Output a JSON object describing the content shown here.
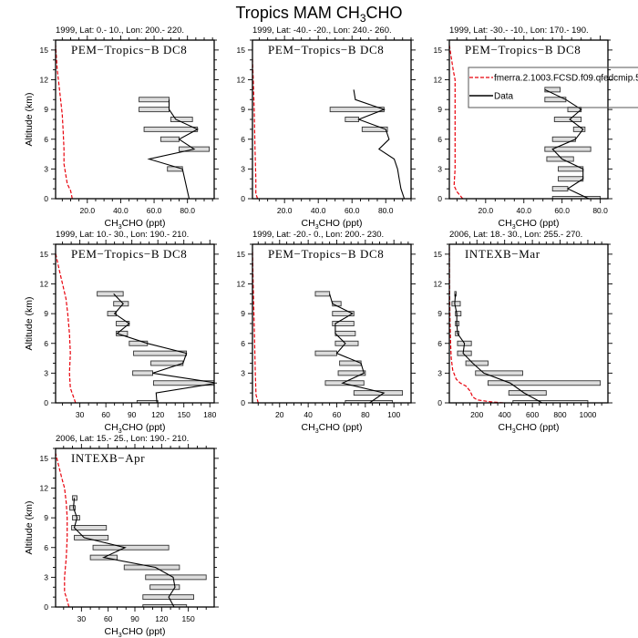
{
  "figure": {
    "title_parts": [
      "Tropics MAM CH",
      "3",
      "CHO"
    ]
  },
  "legend": {
    "entries": [
      {
        "label": "fmerra.2.1003.FCSD.f09.qfedcmip.5",
        "color": "#e8000b",
        "style": "dashed"
      },
      {
        "label": "Data",
        "color": "#000000",
        "style": "solid"
      }
    ]
  },
  "colors": {
    "model": "#e8000b",
    "data": "#000000",
    "bar_fill": "#dcdcdc",
    "bar_stroke": "#333333"
  },
  "chart_data": [
    {
      "type": "line",
      "subtitle": "1999, Lat: 0.- 10., Lon: 200.- 220.",
      "campaign": "PEM−Tropics−B DC8",
      "xlabel_parts": [
        "CH",
        "3",
        "CHO (ppt)"
      ],
      "ylabel": "Altitude (km)",
      "xlim": [
        1,
        96
      ],
      "ylim": [
        0,
        16
      ],
      "xticks": [
        20,
        40,
        60,
        80
      ],
      "xtick_labels": [
        "20.0",
        "40.0",
        "60.0",
        "80.0"
      ],
      "xminor": 5,
      "yticks": [
        0,
        3,
        6,
        9,
        12,
        15
      ],
      "ytick_labels": [
        "0",
        "3",
        "6",
        "9",
        "12",
        "15"
      ],
      "yminor": 1,
      "model": [
        [
          11,
          0
        ],
        [
          10,
          0.8
        ],
        [
          8,
          1.5
        ],
        [
          7,
          2.5
        ],
        [
          6,
          3.5
        ],
        [
          6,
          5
        ],
        [
          5.5,
          7
        ],
        [
          5,
          8.5
        ],
        [
          4,
          10
        ],
        [
          3,
          11.5
        ],
        [
          2,
          13
        ],
        [
          1,
          15.5
        ]
      ],
      "data": [
        [
          81,
          0
        ],
        [
          77,
          3
        ],
        [
          57,
          4
        ],
        [
          84,
          5
        ],
        [
          75,
          6
        ],
        [
          86,
          7
        ],
        [
          73,
          8
        ],
        [
          69,
          9
        ],
        [
          69,
          10
        ]
      ],
      "bars": [
        [
          10,
          51,
          69
        ],
        [
          9,
          51,
          69
        ],
        [
          8,
          70,
          83
        ],
        [
          7,
          54,
          86
        ],
        [
          6,
          64,
          75
        ],
        [
          5,
          75,
          93
        ],
        [
          3,
          68,
          77
        ]
      ],
      "legend": false
    },
    {
      "type": "line",
      "subtitle": "1999, Lat: -40.- -20., Lon: 240.- 260.",
      "campaign": "PEM−Tropics−B DC8",
      "xlabel_parts": [
        "CH",
        "3",
        "CHO (ppt)"
      ],
      "ylabel": "",
      "xlim": [
        1,
        95
      ],
      "ylim": [
        0,
        16
      ],
      "xticks": [
        20,
        40,
        60,
        80
      ],
      "xtick_labels": [
        "20.0",
        "40.0",
        "60.0",
        "80.0"
      ],
      "xminor": 5,
      "yticks": [
        0,
        3,
        6,
        9,
        12,
        15
      ],
      "ytick_labels": [
        "0",
        "3",
        "6",
        "9",
        "12",
        "15"
      ],
      "yminor": 1,
      "model": [
        [
          4,
          0
        ],
        [
          3,
          0.5
        ],
        [
          3,
          2
        ],
        [
          2.5,
          5
        ],
        [
          2,
          9
        ],
        [
          1.5,
          12
        ],
        [
          1,
          14
        ],
        [
          0.5,
          15.5
        ]
      ],
      "data": [
        [
          91,
          0
        ],
        [
          89,
          1
        ],
        [
          88,
          2
        ],
        [
          87,
          3
        ],
        [
          85,
          4
        ],
        [
          76,
          5
        ],
        [
          82,
          6
        ],
        [
          80,
          7
        ],
        [
          64,
          8
        ],
        [
          79,
          9
        ],
        [
          62,
          10
        ],
        [
          61,
          11
        ]
      ],
      "bars": [
        [
          9,
          47,
          79
        ],
        [
          8,
          56,
          64
        ],
        [
          7,
          66,
          81
        ]
      ],
      "legend": false
    },
    {
      "type": "line",
      "subtitle": "1999, Lat: -30.- -10., Lon: 170.- 190.",
      "campaign": "PEM−Tropics−B DC8",
      "xlabel_parts": [
        "CH",
        "3",
        "CHO (ppt)"
      ],
      "ylabel": "",
      "xlim": [
        1,
        84
      ],
      "ylim": [
        0,
        16
      ],
      "xticks": [
        20,
        40,
        60,
        80
      ],
      "xtick_labels": [
        "20.0",
        "40.0",
        "60.0",
        "80.0"
      ],
      "xminor": 5,
      "yticks": [
        0,
        3,
        6,
        9,
        12,
        15
      ],
      "ytick_labels": [
        "0",
        "3",
        "6",
        "9",
        "12",
        "15"
      ],
      "yminor": 1,
      "model": [
        [
          8,
          0
        ],
        [
          5,
          0.7
        ],
        [
          3.5,
          1.3
        ],
        [
          4,
          3
        ],
        [
          4,
          12
        ],
        [
          3,
          13
        ],
        [
          1,
          15.5
        ]
      ],
      "data": [
        [
          74,
          0
        ],
        [
          63,
          1
        ],
        [
          71,
          2
        ],
        [
          71,
          3
        ],
        [
          60,
          4
        ],
        [
          55,
          5
        ],
        [
          67,
          6
        ],
        [
          71,
          7
        ],
        [
          64,
          8
        ],
        [
          70,
          9
        ],
        [
          62,
          10
        ],
        [
          51,
          11
        ]
      ],
      "bars": [
        [
          11,
          51,
          59
        ],
        [
          10,
          51,
          62
        ],
        [
          9,
          63,
          70
        ],
        [
          8,
          56,
          70
        ],
        [
          7,
          66,
          72
        ],
        [
          6,
          55,
          67
        ],
        [
          5,
          51,
          75
        ],
        [
          4,
          52,
          66
        ],
        [
          3,
          58,
          71
        ],
        [
          2,
          58,
          71
        ],
        [
          1,
          55,
          63
        ],
        [
          0,
          55,
          80
        ]
      ],
      "legend": true
    },
    {
      "type": "line",
      "subtitle": "1999, Lat: 10.- 30., Lon: 190.- 210.",
      "campaign": "PEM−Tropics−B DC8",
      "xlabel_parts": [
        "CH",
        "3",
        "CHO (ppt)"
      ],
      "ylabel": "Altitude (km)",
      "xlim": [
        2,
        185
      ],
      "ylim": [
        0,
        16
      ],
      "xticks": [
        30,
        60,
        90,
        120,
        150,
        180
      ],
      "xtick_labels": [
        "30",
        "60",
        "90",
        "120",
        "150",
        "180"
      ],
      "xminor": 10,
      "yticks": [
        0,
        3,
        6,
        9,
        12,
        15
      ],
      "ytick_labels": [
        "0",
        "3",
        "6",
        "9",
        "12",
        "15"
      ],
      "yminor": 1,
      "model": [
        [
          25,
          0
        ],
        [
          19,
          1.5
        ],
        [
          18,
          3
        ],
        [
          19,
          5
        ],
        [
          18,
          7
        ],
        [
          16,
          9
        ],
        [
          14,
          10.5
        ],
        [
          10,
          12
        ],
        [
          6,
          13.5
        ],
        [
          1,
          15.5
        ]
      ],
      "data": [
        [
          119,
          0
        ],
        [
          118,
          1
        ],
        [
          188,
          2
        ],
        [
          114,
          3
        ],
        [
          149,
          4
        ],
        [
          153,
          5
        ],
        [
          108,
          6
        ],
        [
          73,
          7
        ],
        [
          87,
          8
        ],
        [
          70,
          9
        ],
        [
          80,
          10
        ],
        [
          69,
          11
        ]
      ],
      "bars": [
        [
          11,
          50,
          80
        ],
        [
          10,
          69,
          86
        ],
        [
          9,
          62,
          72
        ],
        [
          8,
          72,
          87
        ],
        [
          7,
          72,
          85
        ],
        [
          6,
          87,
          108
        ],
        [
          5,
          92,
          153
        ],
        [
          4,
          112,
          149
        ],
        [
          3,
          91,
          114
        ],
        [
          2,
          115,
          188
        ],
        [
          0,
          96,
          120
        ]
      ],
      "legend": false
    },
    {
      "type": "line",
      "subtitle": "1999, Lat: -20.- 0., Lon: 200.- 230.",
      "campaign": "PEM−Tropics−B DC8",
      "xlabel_parts": [
        "CH",
        "3",
        "CHO (ppt)"
      ],
      "ylabel": "",
      "xlim": [
        1,
        112
      ],
      "ylim": [
        0,
        16
      ],
      "xticks": [
        20,
        40,
        60,
        80,
        100
      ],
      "xtick_labels": [
        "20",
        "40",
        "60",
        "80",
        "100"
      ],
      "xminor": 5,
      "yticks": [
        0,
        3,
        6,
        9,
        12,
        15
      ],
      "ytick_labels": [
        "0",
        "3",
        "6",
        "9",
        "12",
        "15"
      ],
      "yminor": 1,
      "model": [
        [
          5,
          0
        ],
        [
          3.5,
          0.8
        ],
        [
          3,
          3
        ],
        [
          2.5,
          6
        ],
        [
          2,
          9
        ],
        [
          1.5,
          12
        ],
        [
          1,
          15.5
        ]
      ],
      "data": [
        [
          83,
          0
        ],
        [
          93,
          1
        ],
        [
          64,
          2
        ],
        [
          79,
          3
        ],
        [
          77,
          4
        ],
        [
          60,
          5
        ],
        [
          66,
          6
        ],
        [
          59,
          7
        ],
        [
          59,
          8
        ],
        [
          71,
          9
        ],
        [
          57,
          10
        ],
        [
          55,
          11
        ]
      ],
      "bars": [
        [
          11,
          45,
          55
        ],
        [
          10,
          57,
          63
        ],
        [
          9,
          57,
          72
        ],
        [
          8,
          57,
          72
        ],
        [
          7,
          59,
          73
        ],
        [
          6,
          59,
          75
        ],
        [
          5,
          45,
          60
        ],
        [
          4,
          62,
          77
        ],
        [
          3,
          61,
          80
        ],
        [
          2,
          52,
          79
        ],
        [
          1,
          72,
          106
        ],
        [
          0,
          66,
          99
        ]
      ],
      "legend": false
    },
    {
      "type": "line",
      "subtitle": "2006, Lat: 18.- 30., Lon: 255.- 270.",
      "campaign": "INTEXB−Mar",
      "xlabel_parts": [
        "CH",
        "3",
        "CHO (ppt)"
      ],
      "ylabel": "",
      "xlim": [
        1,
        1145
      ],
      "ylim": [
        0,
        16
      ],
      "xticks": [
        200,
        400,
        600,
        800,
        1000
      ],
      "xtick_labels": [
        "200",
        "400",
        "600",
        "800",
        "1000"
      ],
      "xminor": 50,
      "yticks": [
        0,
        3,
        6,
        9,
        12,
        15
      ],
      "ytick_labels": [
        "0",
        "3",
        "6",
        "9",
        "12",
        "15"
      ],
      "yminor": 1,
      "model": [
        [
          390,
          0
        ],
        [
          300,
          0.1
        ],
        [
          200,
          0.3
        ],
        [
          170,
          0.6
        ],
        [
          150,
          1.2
        ],
        [
          120,
          1.7
        ],
        [
          80,
          2
        ],
        [
          50,
          2.4
        ],
        [
          25,
          3.3
        ],
        [
          15,
          4.5
        ],
        [
          10,
          6
        ],
        [
          6,
          8
        ],
        [
          3,
          11
        ],
        [
          1,
          16
        ]
      ],
      "data": [
        [
          670,
          0
        ],
        [
          540,
          1
        ],
        [
          440,
          2
        ],
        [
          250,
          3
        ],
        [
          170,
          4
        ],
        [
          100,
          5
        ],
        [
          110,
          6
        ],
        [
          60,
          7
        ],
        [
          55,
          8
        ],
        [
          55,
          9
        ],
        [
          40,
          10
        ],
        [
          45,
          11
        ]
      ],
      "bars": [
        [
          11,
          40,
          50
        ],
        [
          10,
          20,
          80
        ],
        [
          9,
          45,
          85
        ],
        [
          8,
          45,
          70
        ],
        [
          7,
          45,
          70
        ],
        [
          6,
          60,
          160
        ],
        [
          5,
          60,
          160
        ],
        [
          4,
          120,
          280
        ],
        [
          3,
          190,
          530
        ],
        [
          2,
          280,
          1090
        ],
        [
          1,
          430,
          700
        ],
        [
          0,
          460,
          1000
        ]
      ],
      "legend": false
    },
    {
      "type": "line",
      "subtitle": "2006, Lat: 15.- 25., Lon: 190.- 210.",
      "campaign": "INTEXB−Apr",
      "xlabel_parts": [
        "CH",
        "3",
        "CHO (ppt)"
      ],
      "ylabel": "Altitude (km)",
      "xlim": [
        1,
        179
      ],
      "ylim": [
        0,
        16
      ],
      "xticks": [
        30,
        60,
        90,
        120,
        150
      ],
      "xtick_labels": [
        "30",
        "60",
        "90",
        "120",
        "150"
      ],
      "xminor": 10,
      "yticks": [
        0,
        3,
        6,
        9,
        12,
        15
      ],
      "ytick_labels": [
        "0",
        "3",
        "6",
        "9",
        "12",
        "15"
      ],
      "yminor": 1,
      "model": [
        [
          16,
          0
        ],
        [
          13,
          1
        ],
        [
          11,
          1.5
        ],
        [
          11,
          3
        ],
        [
          13,
          5
        ],
        [
          14,
          7
        ],
        [
          14,
          9
        ],
        [
          13,
          10.5
        ],
        [
          11,
          12
        ],
        [
          8,
          13
        ],
        [
          1,
          15.5
        ]
      ],
      "data": [
        [
          134,
          0
        ],
        [
          128,
          1
        ],
        [
          135,
          2
        ],
        [
          133,
          3
        ],
        [
          113,
          4
        ],
        [
          55,
          5
        ],
        [
          79,
          6
        ],
        [
          33,
          7
        ],
        [
          22,
          8
        ],
        [
          25,
          9
        ],
        [
          21,
          10
        ],
        [
          22,
          11
        ]
      ],
      "bars": [
        [
          11,
          20,
          25
        ],
        [
          10,
          17,
          23
        ],
        [
          9,
          20,
          28
        ],
        [
          8,
          19,
          58
        ],
        [
          7,
          22,
          60
        ],
        [
          6,
          43,
          128
        ],
        [
          5,
          40,
          70
        ],
        [
          4,
          78,
          140
        ],
        [
          3,
          102,
          170
        ],
        [
          2,
          107,
          140
        ],
        [
          1,
          99,
          156
        ],
        [
          0,
          99,
          148
        ]
      ],
      "legend": false
    }
  ]
}
